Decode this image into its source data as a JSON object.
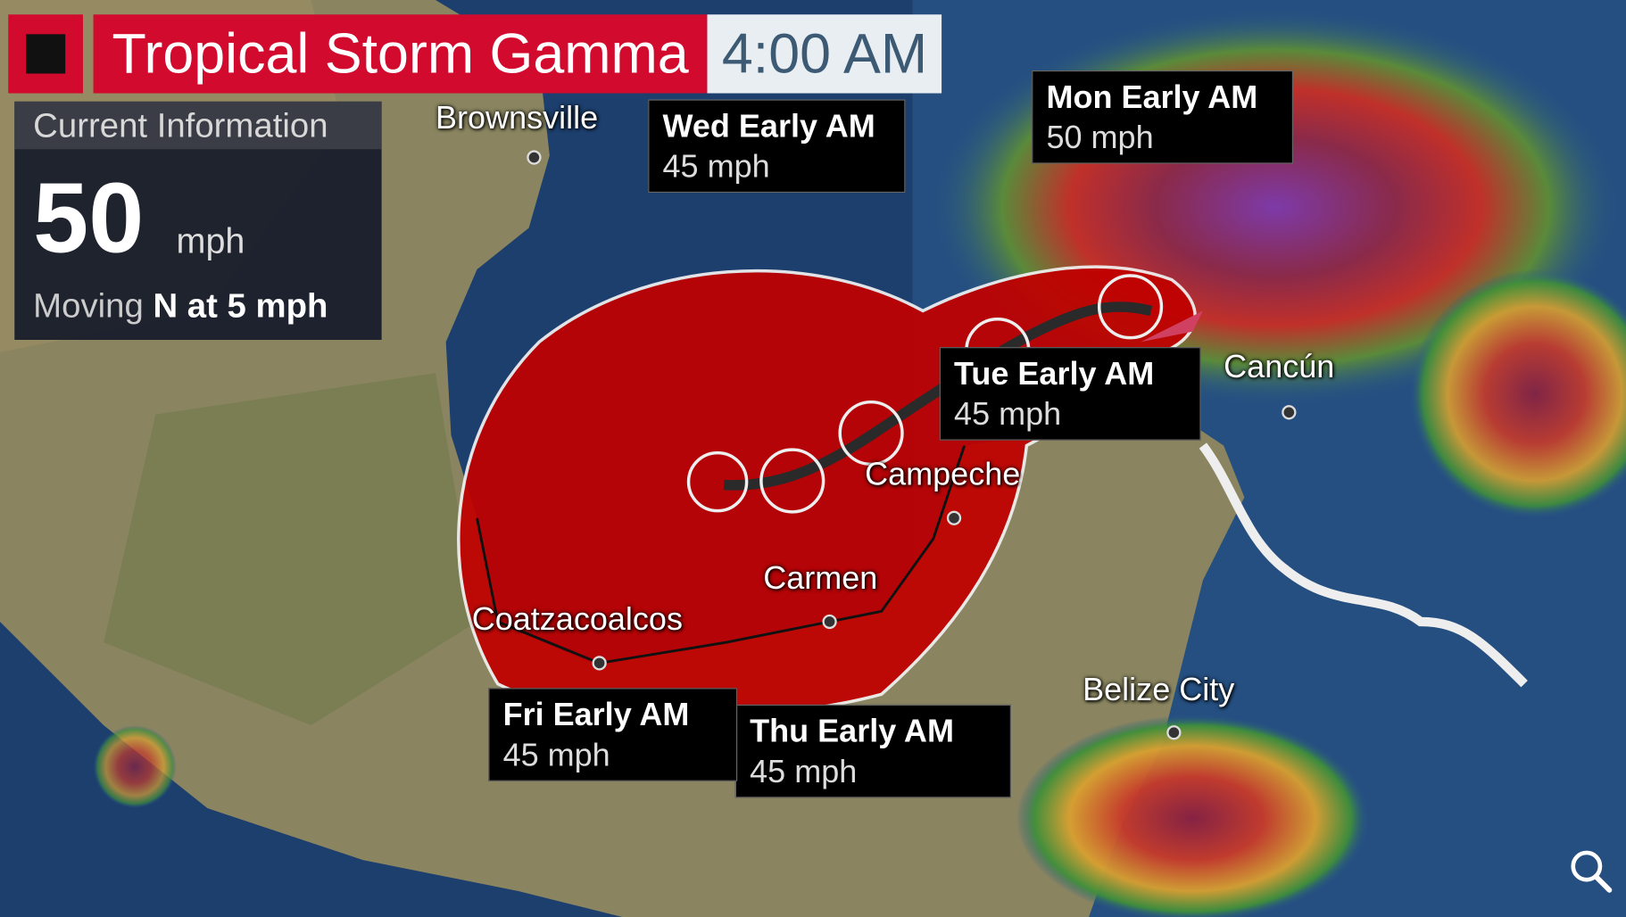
{
  "header": {
    "title": "Tropical Storm Gamma",
    "time": "4:00 AM",
    "stop_icon": "stop-square-icon"
  },
  "current_info": {
    "heading": "Current Information",
    "wind_speed": "50",
    "wind_unit": "mph",
    "moving_label": "Moving",
    "moving_value": "N at 5 mph"
  },
  "forecast_labels": [
    {
      "day": "Mon Early AM",
      "wind": "50 mph"
    },
    {
      "day": "Tue Early AM",
      "wind": "45 mph"
    },
    {
      "day": "Wed Early AM",
      "wind": "45 mph"
    },
    {
      "day": "Thu Early AM",
      "wind": "45 mph"
    },
    {
      "day": "Fri Early AM",
      "wind": "45 mph"
    }
  ],
  "cities": [
    "Brownsville",
    "Cancún",
    "Campeche",
    "Carmen",
    "Coatzacoalcos",
    "Belize City"
  ],
  "colors": {
    "title_red": "#d10a2e",
    "cone_red": "#c00000",
    "ocean": "#1d3f6e",
    "land": "#8c8560"
  },
  "controls": {
    "zoom_icon": "magnifier-icon"
  }
}
